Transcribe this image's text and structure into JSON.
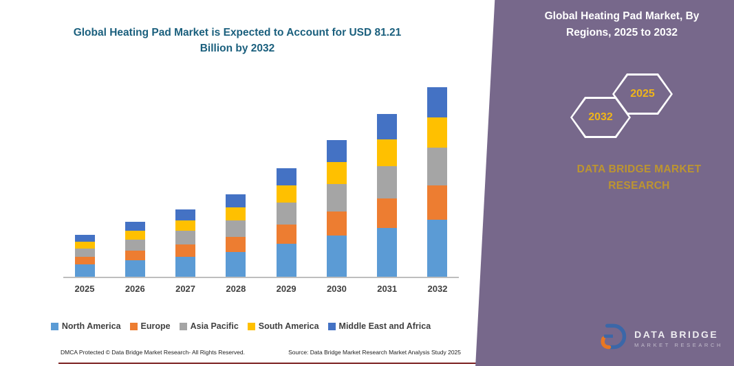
{
  "chart_data": {
    "type": "bar",
    "stacked": true,
    "title": "Global Heating Pad Market is Expected to Account for USD 81.21 Billion by 2032",
    "categories": [
      "2025",
      "2026",
      "2027",
      "2028",
      "2029",
      "2030",
      "2031",
      "2032"
    ],
    "series": [
      {
        "name": "North America",
        "color": "#5B9BD5",
        "values": [
          5.4,
          7.0,
          8.6,
          10.6,
          14.0,
          17.6,
          20.9,
          24.4
        ]
      },
      {
        "name": "Europe",
        "color": "#ED7D31",
        "values": [
          3.2,
          4.2,
          5.2,
          6.4,
          8.4,
          10.5,
          12.6,
          14.6
        ]
      },
      {
        "name": "Asia Pacific",
        "color": "#A5A5A5",
        "values": [
          3.6,
          4.7,
          5.8,
          7.1,
          9.3,
          11.7,
          14.0,
          16.2
        ]
      },
      {
        "name": "South America",
        "color": "#FFC000",
        "values": [
          2.9,
          3.8,
          4.6,
          5.6,
          7.4,
          9.4,
          11.2,
          13.0
        ]
      },
      {
        "name": "Middle East and Africa",
        "color": "#4472C4",
        "values": [
          2.9,
          3.8,
          4.6,
          5.6,
          7.4,
          9.4,
          11.1,
          13.0
        ]
      }
    ],
    "ylim": [
      0,
      85
    ],
    "unit": "USD Billion",
    "grid": false,
    "legend_position": "bottom"
  },
  "panel": {
    "title": "Global Heating Pad Market, By Regions, 2025 to 2032",
    "hex_left": "2032",
    "hex_right": "2025",
    "brand_line1": "DATA BRIDGE MARKET",
    "brand_line2": "RESEARCH",
    "logo_line1": "DATA BRIDGE",
    "logo_line2": "MARKET RESEARCH"
  },
  "footer": {
    "dmca": "DMCA Protected © Data Bridge Market Research-  All Rights Reserved.",
    "source": "Source: Data Bridge Market Research  Market Analysis Study 2025"
  }
}
